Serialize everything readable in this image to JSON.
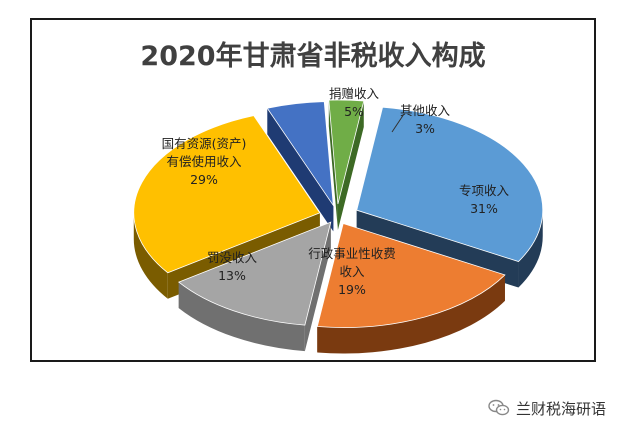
{
  "chart_data": {
    "type": "pie",
    "title": "2020年甘肃省非税收入构成",
    "slices": [
      {
        "label_lines": [
          "专项收入"
        ],
        "value_label": "31%",
        "value": 31,
        "color": "#5b9bd5",
        "side_color": "#233c57"
      },
      {
        "label_lines": [
          "行政事业性收费",
          "收入"
        ],
        "value_label": "19%",
        "value": 19,
        "color": "#ed7d31",
        "side_color": "#7a3a10"
      },
      {
        "label_lines": [
          "罚没收入"
        ],
        "value_label": "13%",
        "value": 13,
        "color": "#a5a5a5",
        "side_color": "#707070"
      },
      {
        "label_lines": [
          "国有资源(资产)",
          "有偿使用收入"
        ],
        "value_label": "29%",
        "value": 29,
        "color": "#ffc000",
        "side_color": "#7a5c00"
      },
      {
        "label_lines": [
          "捐赠收入"
        ],
        "value_label": "5%",
        "value": 5,
        "color": "#4472c4",
        "side_color": "#1f3b73"
      },
      {
        "label_lines": [
          "其他收入"
        ],
        "value_label": "3%",
        "value": 3,
        "color": "#70ad47",
        "side_color": "#3d6a25"
      }
    ]
  },
  "watermark": {
    "text": "兰财税海研语"
  }
}
